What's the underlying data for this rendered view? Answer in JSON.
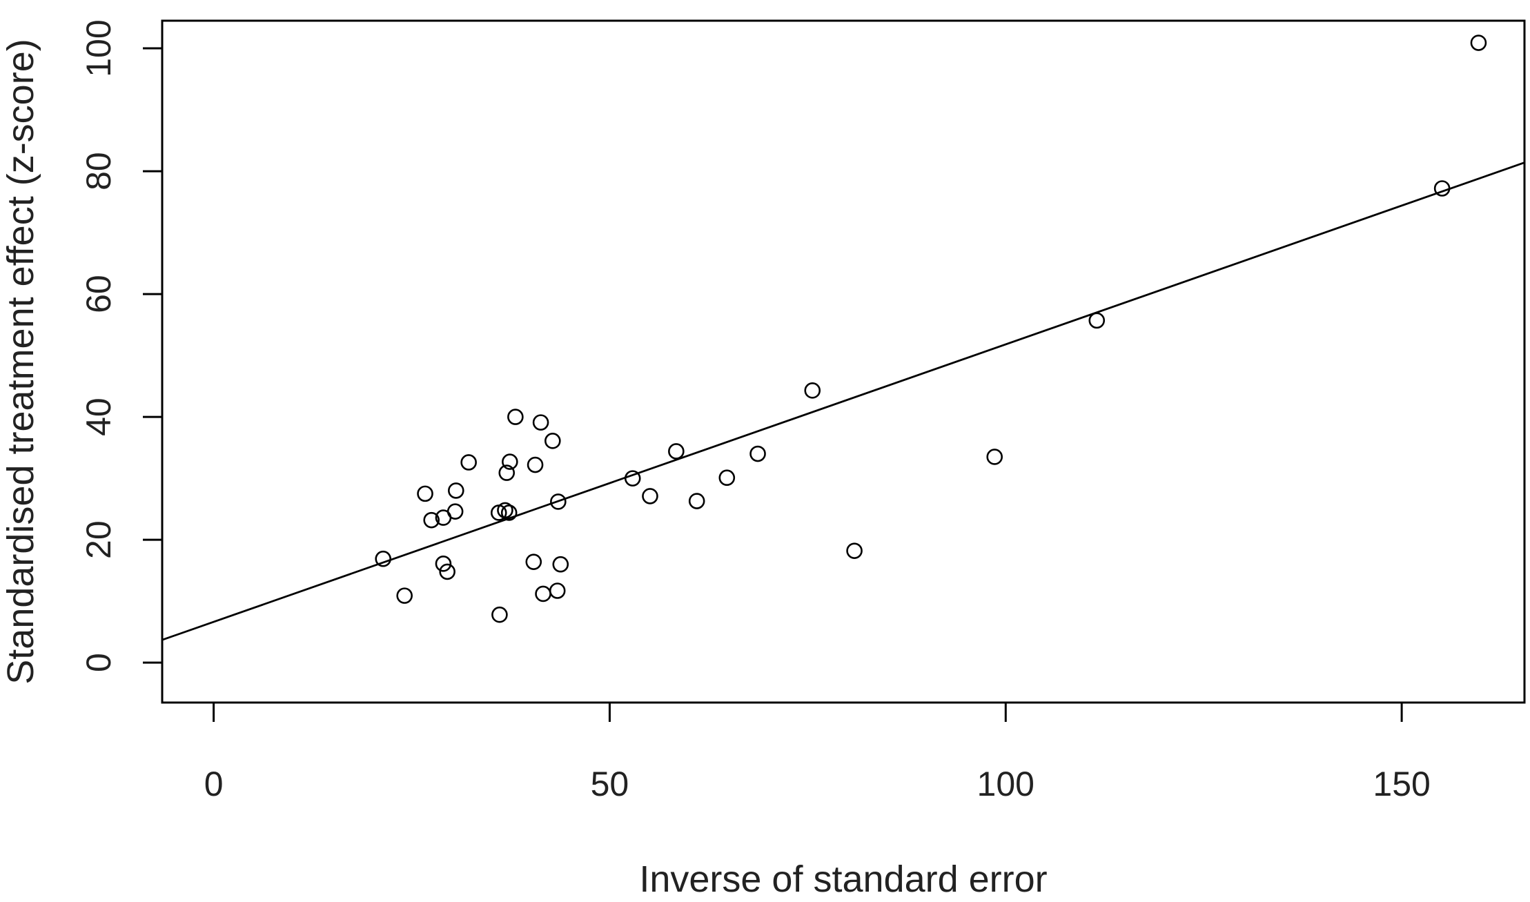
{
  "chart_data": {
    "type": "scatter",
    "xlabel": "Inverse of standard error",
    "ylabel": "Standardised treatment effect (z-score)",
    "xlim": [
      -6.5,
      165.5
    ],
    "ylim": [
      -6.5,
      104.5
    ],
    "x_ticks": [
      0,
      50,
      100,
      150
    ],
    "x_tick_labels": [
      "0",
      "50",
      "100",
      "150"
    ],
    "y_ticks": [
      0,
      20,
      40,
      60,
      80,
      100
    ],
    "y_tick_labels": [
      "0",
      "20",
      "40",
      "60",
      "80",
      "100"
    ],
    "grid": false,
    "legend": "none",
    "marker": "open-circle",
    "color": "#000000",
    "points": [
      {
        "x": 21.4,
        "y": 16.9
      },
      {
        "x": 24.1,
        "y": 10.9
      },
      {
        "x": 26.7,
        "y": 27.5
      },
      {
        "x": 27.5,
        "y": 23.2
      },
      {
        "x": 29.0,
        "y": 23.6
      },
      {
        "x": 29.0,
        "y": 16.1
      },
      {
        "x": 29.5,
        "y": 14.8
      },
      {
        "x": 30.5,
        "y": 24.6
      },
      {
        "x": 30.6,
        "y": 28.0
      },
      {
        "x": 32.2,
        "y": 32.6
      },
      {
        "x": 36.0,
        "y": 24.4
      },
      {
        "x": 36.1,
        "y": 7.8
      },
      {
        "x": 36.8,
        "y": 24.8
      },
      {
        "x": 37.0,
        "y": 30.9
      },
      {
        "x": 37.3,
        "y": 24.4
      },
      {
        "x": 37.4,
        "y": 32.7
      },
      {
        "x": 38.1,
        "y": 40.0
      },
      {
        "x": 40.4,
        "y": 16.4
      },
      {
        "x": 40.6,
        "y": 32.2
      },
      {
        "x": 41.3,
        "y": 39.1
      },
      {
        "x": 41.6,
        "y": 11.2
      },
      {
        "x": 42.8,
        "y": 36.1
      },
      {
        "x": 43.4,
        "y": 11.7
      },
      {
        "x": 43.5,
        "y": 26.2
      },
      {
        "x": 43.8,
        "y": 16.0
      },
      {
        "x": 52.9,
        "y": 30.0
      },
      {
        "x": 55.1,
        "y": 27.1
      },
      {
        "x": 58.4,
        "y": 34.4
      },
      {
        "x": 61.0,
        "y": 26.3
      },
      {
        "x": 64.8,
        "y": 30.1
      },
      {
        "x": 68.7,
        "y": 34.0
      },
      {
        "x": 75.6,
        "y": 44.3
      },
      {
        "x": 80.9,
        "y": 18.2
      },
      {
        "x": 98.6,
        "y": 33.5
      },
      {
        "x": 111.5,
        "y": 55.7
      },
      {
        "x": 155.1,
        "y": 77.2
      },
      {
        "x": 159.7,
        "y": 100.9
      }
    ],
    "fit_line": {
      "type": "linear",
      "x": [
        -6.5,
        165.5
      ],
      "y": [
        3.7,
        81.4
      ]
    }
  }
}
